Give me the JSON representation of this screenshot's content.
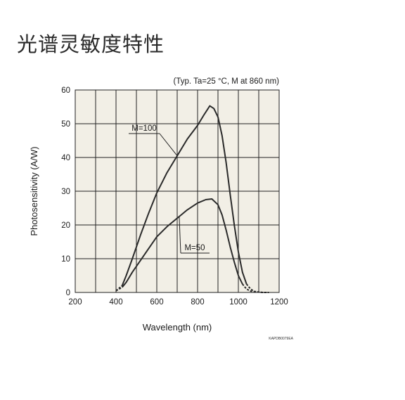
{
  "page": {
    "title": "光谱灵敏度特性"
  },
  "chart_data": {
    "type": "line",
    "title": "",
    "note": "(Typ. Ta=25 °C, M at 860 nm)",
    "xlabel": "Wavelength (nm)",
    "ylabel": "Photosensitivity (A/W)",
    "xlim": [
      200,
      1200
    ],
    "ylim": [
      0,
      60
    ],
    "x_ticks": [
      "200",
      "400",
      "600",
      "800",
      "1000",
      "1200"
    ],
    "y_ticks": [
      "0",
      "10",
      "20",
      "30",
      "40",
      "50",
      "60"
    ],
    "grid": true,
    "background": "#f2efe6",
    "line_color": "#2a2a2a",
    "figure_code": "KAPDB0079EA",
    "series": [
      {
        "name": "M=100",
        "x": [
          400,
          430,
          450,
          480,
          520,
          560,
          600,
          650,
          700,
          750,
          800,
          830,
          860,
          880,
          900,
          920,
          940,
          960,
          980,
          1000,
          1020,
          1040,
          1060,
          1080,
          1100,
          1120,
          1150
        ],
        "y": [
          0.5,
          2,
          5,
          10,
          17,
          23.5,
          29.5,
          35.5,
          40.5,
          45.5,
          49.5,
          52.5,
          55.3,
          54.5,
          52,
          46.5,
          38.5,
          29,
          20,
          12,
          6,
          2.5,
          1,
          0.3,
          0.1,
          0,
          0
        ]
      },
      {
        "name": "M=50",
        "x": [
          400,
          430,
          450,
          480,
          520,
          560,
          600,
          650,
          700,
          750,
          800,
          840,
          870,
          900,
          920,
          940,
          960,
          980,
          1000,
          1020,
          1040,
          1060,
          1080,
          1100,
          1120,
          1150
        ],
        "y": [
          0.5,
          1.5,
          3,
          6,
          9.5,
          13,
          16.5,
          19.5,
          22,
          24.5,
          26.5,
          27.5,
          27.7,
          26,
          23,
          18.5,
          13.5,
          9,
          5,
          2.5,
          1,
          0.4,
          0.2,
          0.1,
          0,
          0
        ]
      }
    ],
    "callouts": [
      {
        "label": "M=100",
        "series": 0,
        "at_x": 700
      },
      {
        "label": "M=50",
        "series": 1,
        "at_x": 710
      }
    ]
  }
}
